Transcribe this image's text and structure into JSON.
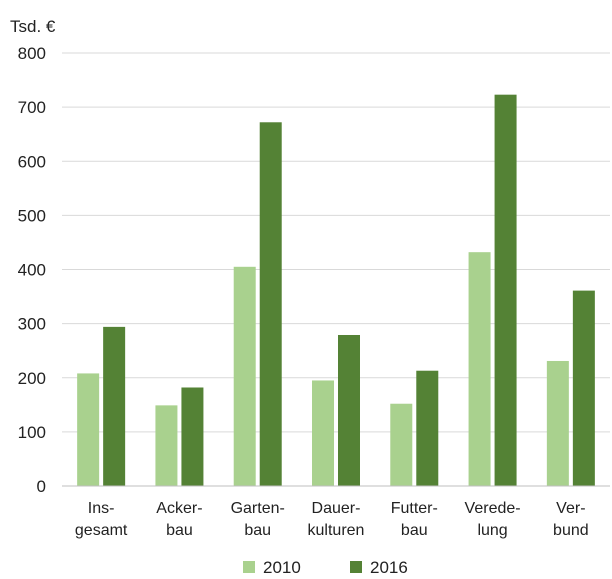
{
  "chart_data": {
    "type": "bar",
    "unit_label": "Tsd. €",
    "categories": [
      [
        "Ins-",
        "gesamt"
      ],
      [
        "Acker-",
        "bau"
      ],
      [
        "Garten-",
        "bau"
      ],
      [
        "Dauer-",
        "kulturen"
      ],
      [
        "Futter-",
        "bau"
      ],
      [
        "Verede-",
        "lung"
      ],
      [
        "Ver-",
        "bund"
      ]
    ],
    "series": [
      {
        "name": "2010",
        "color": "#a9d18e",
        "values": [
          208,
          149,
          405,
          195,
          152,
          432,
          231
        ]
      },
      {
        "name": "2016",
        "color": "#548235",
        "values": [
          294,
          182,
          672,
          279,
          213,
          723,
          361
        ]
      }
    ],
    "ylim": [
      0,
      800
    ],
    "yticks": [
      "0",
      "100",
      "200",
      "300",
      "400",
      "500",
      "600",
      "700",
      "800"
    ],
    "grid": true,
    "legend_position": "bottom-center"
  }
}
